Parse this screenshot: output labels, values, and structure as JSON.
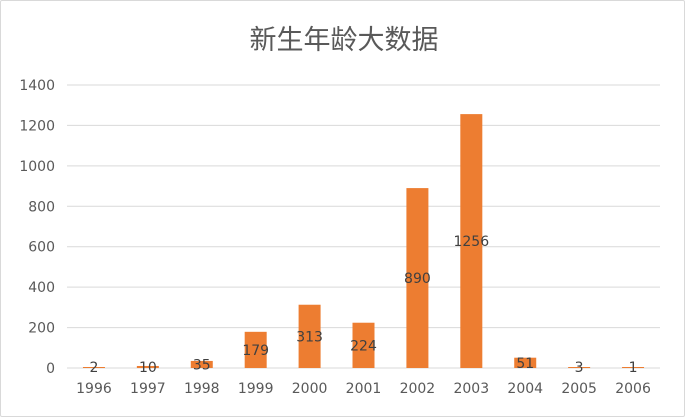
{
  "chart_data": {
    "type": "bar",
    "title": "新生年龄大数据",
    "xlabel": "",
    "ylabel": "",
    "categories": [
      "1996",
      "1997",
      "1998",
      "1999",
      "2000",
      "2001",
      "2002",
      "2003",
      "2004",
      "2005",
      "2006"
    ],
    "values": [
      2,
      10,
      35,
      179,
      313,
      224,
      890,
      1256,
      51,
      3,
      1
    ],
    "data_labels": [
      "2",
      "10",
      "35",
      "179",
      "313",
      "224",
      "890",
      "1256",
      "51",
      "3",
      "1"
    ],
    "ylim": [
      0,
      1400
    ],
    "yticks": [
      "0",
      "200",
      "400",
      "600",
      "800",
      "1000",
      "1200",
      "1400"
    ],
    "grid": true,
    "legend": "none",
    "bar_color": "#ED7D31",
    "grid_color": "#D9D9D9",
    "text_color": "#595959"
  }
}
